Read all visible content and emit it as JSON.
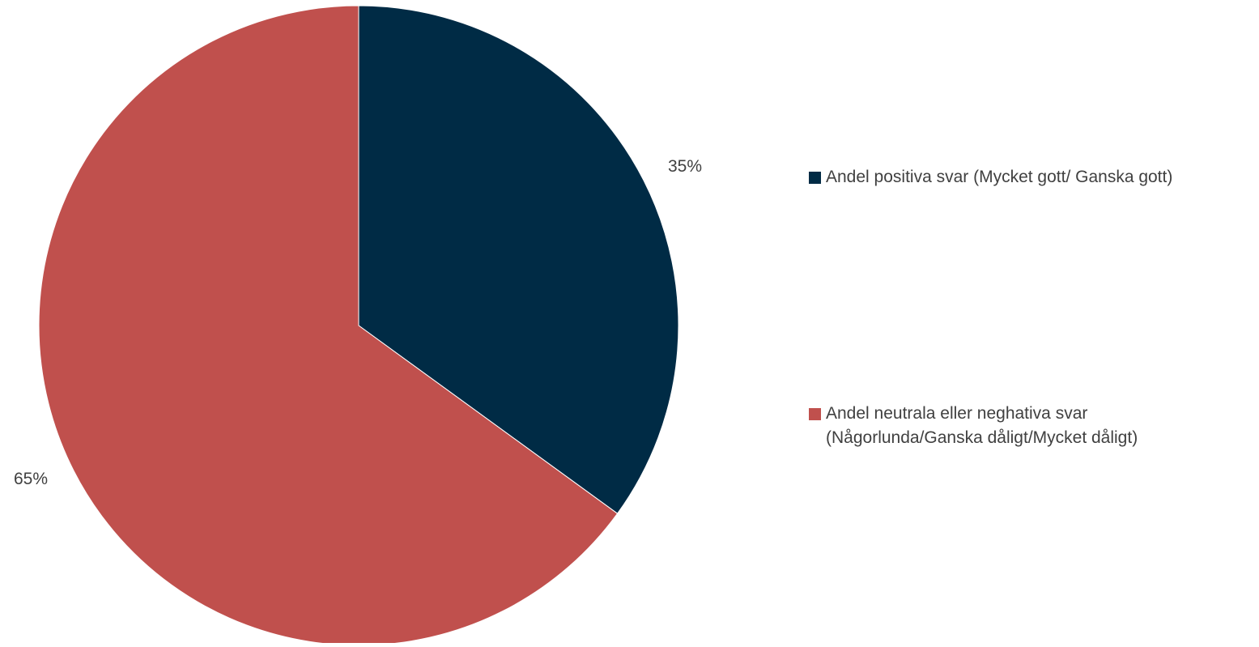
{
  "chart_data": {
    "type": "pie",
    "title": "",
    "slices": [
      {
        "label": "Andel positiva svar (Mycket gott/ Ganska gott)",
        "label_lines": [
          "Andel positiva svar (Mycket gott/ Ganska gott)"
        ],
        "value": 35,
        "display": "35%",
        "color": "#002B45"
      },
      {
        "label": "Andel neutrala eller neghativa svar (Någorlunda/Ganska dåligt/Mycket dåligt)",
        "label_lines": [
          "Andel neutrala eller neghativa svar",
          "(Någorlunda/Ganska dåligt/Mycket dåligt)"
        ],
        "value": 65,
        "display": "65%",
        "color": "#C0504D"
      }
    ],
    "start_angle": "12 o'clock",
    "direction": "clockwise",
    "legend_position": "right"
  }
}
